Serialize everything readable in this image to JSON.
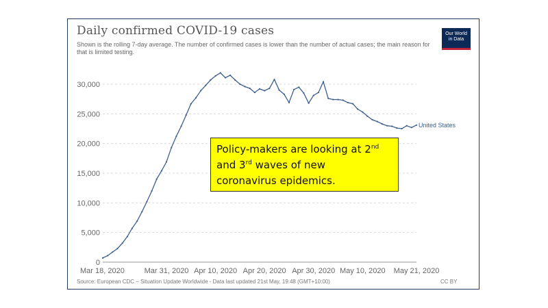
{
  "chart_data": {
    "type": "line",
    "title": "Daily confirmed COVID-19 cases",
    "subtitle": "Shown is the rolling 7-day average. The number of confirmed cases is lower than the number of actual cases; the main reason for that is limited testing.",
    "x_tick_labels": [
      "Mar 18, 2020",
      "Mar 31, 2020",
      "Apr 10, 2020",
      "Apr 20, 2020",
      "Apr 30, 2020",
      "May 10, 2020",
      "May 21, 2020"
    ],
    "x_tick_dates": [
      "2020-03-18",
      "2020-03-31",
      "2020-04-10",
      "2020-04-20",
      "2020-04-30",
      "2020-05-10",
      "2020-05-21"
    ],
    "y_ticks": [
      0,
      5000,
      10000,
      15000,
      20000,
      25000,
      30000
    ],
    "y_tick_labels": [
      "0",
      "5,000",
      "10,000",
      "15,000",
      "20,000",
      "25,000",
      "30,000"
    ],
    "ylim": [
      0,
      33000
    ],
    "xlim": [
      "2020-03-18",
      "2020-05-21"
    ],
    "grid": "horizontal dashed",
    "series": [
      {
        "name": "United States",
        "color": "#3b5e8c",
        "points": [
          [
            "2020-03-18",
            700
          ],
          [
            "2020-03-19",
            1100
          ],
          [
            "2020-03-20",
            1700
          ],
          [
            "2020-03-21",
            2300
          ],
          [
            "2020-03-22",
            3200
          ],
          [
            "2020-03-23",
            4300
          ],
          [
            "2020-03-24",
            5700
          ],
          [
            "2020-03-25",
            6900
          ],
          [
            "2020-03-26",
            8500
          ],
          [
            "2020-03-27",
            10200
          ],
          [
            "2020-03-28",
            12000
          ],
          [
            "2020-03-29",
            14000
          ],
          [
            "2020-03-30",
            15400
          ],
          [
            "2020-03-31",
            16900
          ],
          [
            "2020-04-01",
            19300
          ],
          [
            "2020-04-02",
            21200
          ],
          [
            "2020-04-03",
            22900
          ],
          [
            "2020-04-04",
            24800
          ],
          [
            "2020-04-05",
            26700
          ],
          [
            "2020-04-06",
            27700
          ],
          [
            "2020-04-07",
            28900
          ],
          [
            "2020-04-08",
            29800
          ],
          [
            "2020-04-09",
            30700
          ],
          [
            "2020-04-10",
            31400
          ],
          [
            "2020-04-11",
            31900
          ],
          [
            "2020-04-12",
            31100
          ],
          [
            "2020-04-13",
            31500
          ],
          [
            "2020-04-14",
            30700
          ],
          [
            "2020-04-15",
            30000
          ],
          [
            "2020-04-16",
            29600
          ],
          [
            "2020-04-17",
            29300
          ],
          [
            "2020-04-18",
            28600
          ],
          [
            "2020-04-19",
            29200
          ],
          [
            "2020-04-20",
            28900
          ],
          [
            "2020-04-21",
            29300
          ],
          [
            "2020-04-22",
            30800
          ],
          [
            "2020-04-23",
            29000
          ],
          [
            "2020-04-24",
            28300
          ],
          [
            "2020-04-25",
            26900
          ],
          [
            "2020-04-26",
            29100
          ],
          [
            "2020-04-27",
            29500
          ],
          [
            "2020-04-28",
            28500
          ],
          [
            "2020-04-29",
            26800
          ],
          [
            "2020-04-30",
            28100
          ],
          [
            "2020-05-01",
            28600
          ],
          [
            "2020-05-02",
            30400
          ],
          [
            "2020-05-03",
            27600
          ],
          [
            "2020-05-04",
            27400
          ],
          [
            "2020-05-05",
            27400
          ],
          [
            "2020-05-06",
            27300
          ],
          [
            "2020-05-07",
            26900
          ],
          [
            "2020-05-08",
            26700
          ],
          [
            "2020-05-09",
            25800
          ],
          [
            "2020-05-10",
            25300
          ],
          [
            "2020-05-11",
            24600
          ],
          [
            "2020-05-12",
            24000
          ],
          [
            "2020-05-13",
            23700
          ],
          [
            "2020-05-14",
            23300
          ],
          [
            "2020-05-15",
            23000
          ],
          [
            "2020-05-16",
            22900
          ],
          [
            "2020-05-17",
            22600
          ],
          [
            "2020-05-18",
            22500
          ],
          [
            "2020-05-19",
            23000
          ],
          [
            "2020-05-20",
            22700
          ],
          [
            "2020-05-21",
            23100
          ]
        ]
      }
    ],
    "end_label": "United States"
  },
  "source_text": "Source: European CDC – Situation Update Worldwide - Data last updated 21st May, 19:48 (GMT+10:00)",
  "license_text": "CC BY",
  "logo_text": [
    "Our World",
    "in Data"
  ],
  "callout": {
    "line1_prefix": "Policy-makers are looking at 2",
    "sup1": "nd",
    "line2_prefix": "and 3",
    "sup2": "rd",
    "line2_suffix": " waves of new",
    "line3": "coronavirus epidemics."
  }
}
